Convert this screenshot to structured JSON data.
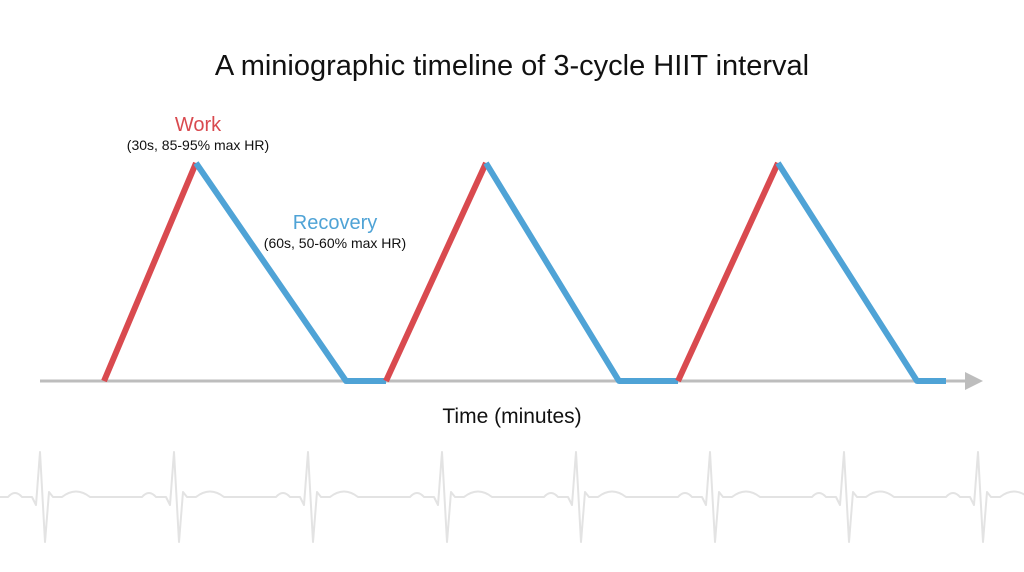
{
  "title": "A miniographic timeline  of 3-cycle HIIT interval",
  "phases": {
    "work": {
      "label": "Work",
      "detail": "(30s, 85-95% max HR)",
      "color": "#d94a4f"
    },
    "recovery": {
      "label": "Recovery",
      "detail": "(60s, 50-60% max HR)",
      "color": "#4fa3d6"
    }
  },
  "cycles": 3,
  "axis": {
    "label": "Time (minutes)",
    "color": "#bdbdbd"
  },
  "decoration": {
    "ecg_color": "#e3e3e3"
  }
}
